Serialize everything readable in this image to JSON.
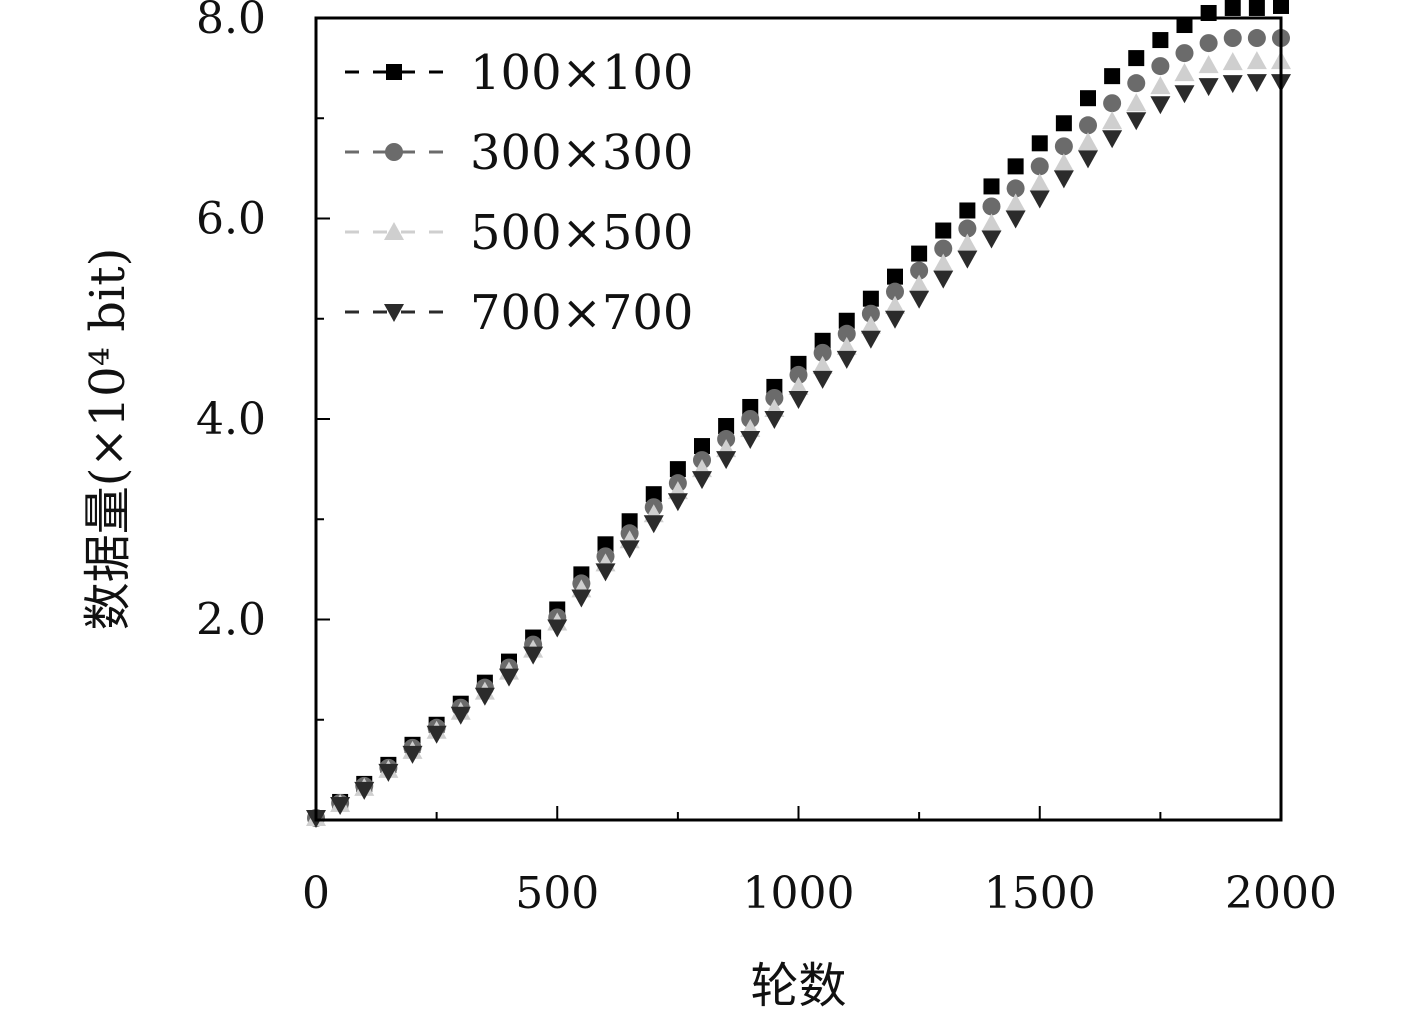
{
  "chart_data": {
    "type": "scatter",
    "xlabel": "轮数",
    "ylabel": "数据量(×10⁴ bit)",
    "xlim": [
      0,
      2000
    ],
    "ylim": [
      0,
      8.0
    ],
    "x_ticks": [
      "0",
      "500",
      "1000",
      "1500",
      "2000"
    ],
    "y_ticks": [
      "2.0",
      "4.0",
      "6.0",
      "8.0"
    ],
    "y_tick_values": [
      2.0,
      4.0,
      6.0,
      8.0
    ],
    "x_tick_values": [
      0,
      500,
      1000,
      1500,
      2000
    ],
    "grid": false,
    "legend_position": "top-left",
    "x": [
      0,
      50,
      100,
      150,
      200,
      250,
      300,
      350,
      400,
      450,
      500,
      550,
      600,
      650,
      700,
      750,
      800,
      850,
      900,
      950,
      1000,
      1050,
      1100,
      1150,
      1200,
      1250,
      1300,
      1350,
      1400,
      1450,
      1500,
      1550,
      1600,
      1650,
      1700,
      1750,
      1800,
      1850,
      1900,
      1950,
      2000
    ],
    "series": [
      {
        "name": "100×100",
        "color": "#000000",
        "marker": "square",
        "values": [
          0.02,
          0.18,
          0.36,
          0.55,
          0.75,
          0.95,
          1.16,
          1.37,
          1.58,
          1.82,
          2.1,
          2.45,
          2.75,
          2.98,
          3.25,
          3.5,
          3.73,
          3.93,
          4.12,
          4.32,
          4.55,
          4.78,
          4.98,
          5.2,
          5.42,
          5.65,
          5.88,
          6.08,
          6.32,
          6.52,
          6.75,
          6.95,
          7.2,
          7.42,
          7.6,
          7.78,
          7.93,
          8.05,
          8.1,
          8.1,
          8.12
        ]
      },
      {
        "name": "300×300",
        "color": "#6b6b6b",
        "marker": "circle",
        "values": [
          0.02,
          0.17,
          0.34,
          0.52,
          0.72,
          0.92,
          1.12,
          1.32,
          1.52,
          1.75,
          2.02,
          2.36,
          2.63,
          2.86,
          3.12,
          3.36,
          3.59,
          3.8,
          4.0,
          4.21,
          4.44,
          4.66,
          4.85,
          5.05,
          5.27,
          5.48,
          5.7,
          5.9,
          6.12,
          6.3,
          6.52,
          6.72,
          6.93,
          7.15,
          7.35,
          7.52,
          7.65,
          7.75,
          7.8,
          7.8,
          7.8
        ]
      },
      {
        "name": "500×500",
        "color": "#cfcfcf",
        "marker": "triangle-up",
        "values": [
          0.02,
          0.16,
          0.32,
          0.5,
          0.69,
          0.89,
          1.08,
          1.28,
          1.48,
          1.7,
          1.97,
          2.3,
          2.56,
          2.79,
          3.05,
          3.28,
          3.5,
          3.7,
          3.9,
          4.1,
          4.32,
          4.53,
          4.72,
          4.93,
          5.13,
          5.34,
          5.55,
          5.75,
          5.95,
          6.15,
          6.35,
          6.55,
          6.76,
          6.97,
          7.15,
          7.32,
          7.45,
          7.53,
          7.56,
          7.57,
          7.57
        ]
      },
      {
        "name": "700×700",
        "color": "#2b2b2b",
        "marker": "triangle-down",
        "values": [
          0.02,
          0.15,
          0.3,
          0.48,
          0.66,
          0.86,
          1.05,
          1.24,
          1.43,
          1.65,
          1.92,
          2.22,
          2.48,
          2.71,
          2.96,
          3.18,
          3.4,
          3.6,
          3.8,
          4.0,
          4.2,
          4.4,
          4.6,
          4.8,
          5.0,
          5.2,
          5.4,
          5.6,
          5.8,
          6.0,
          6.2,
          6.4,
          6.6,
          6.8,
          6.98,
          7.14,
          7.25,
          7.32,
          7.35,
          7.36,
          7.36
        ]
      }
    ]
  }
}
